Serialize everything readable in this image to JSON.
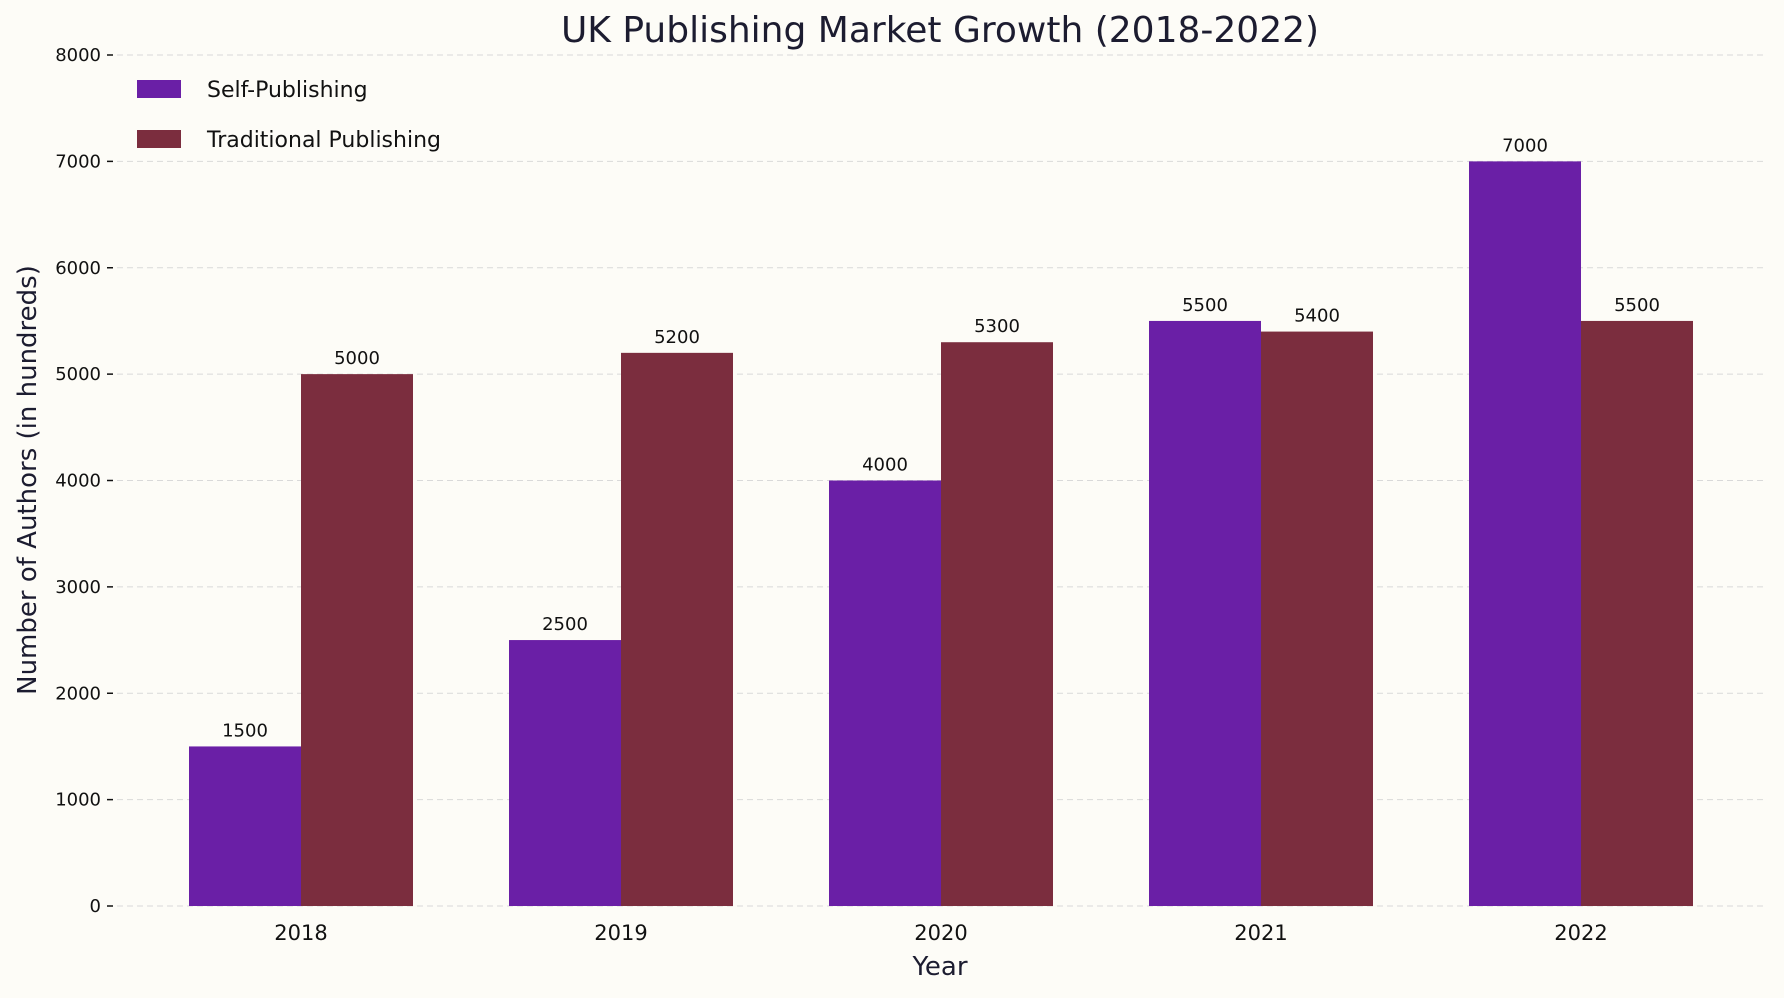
{
  "chart_data": {
    "type": "bar",
    "title": "UK Publishing Market Growth (2018-2022)",
    "xlabel": "Year",
    "ylabel": "Number of Authors (in hundreds)",
    "categories": [
      "2018",
      "2019",
      "2020",
      "2021",
      "2022"
    ],
    "series": [
      {
        "name": "Self-Publishing",
        "values": [
          1500,
          2500,
          4000,
          5500,
          7000
        ],
        "color": "#6a1fa6"
      },
      {
        "name": "Traditional Publishing",
        "values": [
          5000,
          5200,
          5300,
          5400,
          5500
        ],
        "color": "#7b2d3e"
      }
    ],
    "ylim": [
      0,
      8000
    ],
    "yticks": [
      0,
      1000,
      2000,
      3000,
      4000,
      5000,
      6000,
      7000,
      8000
    ],
    "grid": "horizontal dashed",
    "legend": "top-left",
    "data_labels": true
  }
}
